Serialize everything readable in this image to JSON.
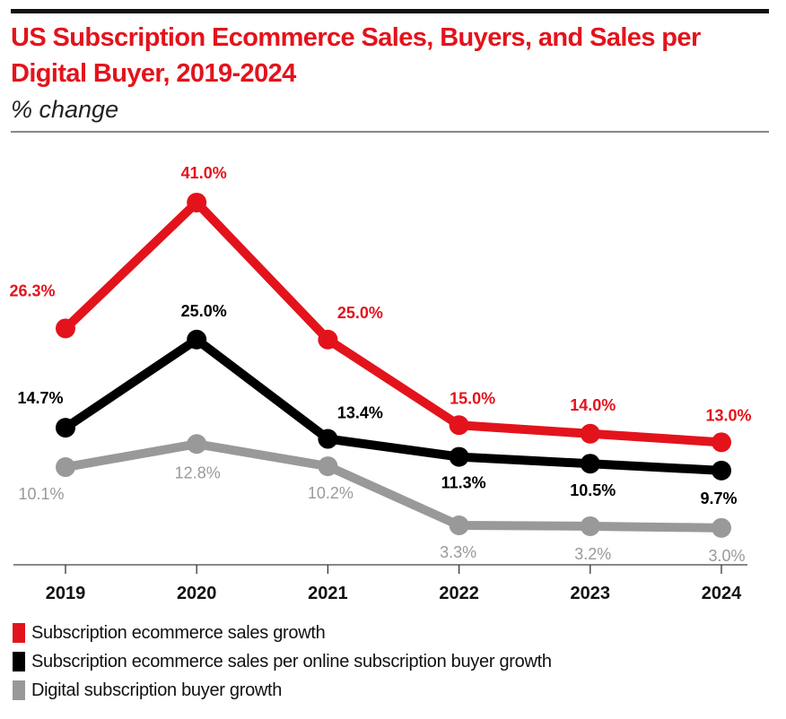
{
  "header": {
    "title": "US Subscription Ecommerce Sales, Buyers, and Sales per Digital Buyer, 2019-2024",
    "subtitle": "% change"
  },
  "chart_data": {
    "type": "line",
    "title": "US Subscription Ecommerce Sales, Buyers, and Sales per Digital Buyer, 2019-2024",
    "subtitle": "% change",
    "xlabel": "",
    "ylabel": "% change",
    "categories": [
      "2019",
      "2020",
      "2021",
      "2022",
      "2023",
      "2024"
    ],
    "ylim": [
      0,
      45
    ],
    "grid": false,
    "legend_position": "bottom-left",
    "series": [
      {
        "name": "Subscription ecommerce sales growth",
        "color": "#e3131c",
        "values": [
          26.3,
          41.0,
          25.0,
          15.0,
          14.0,
          13.0
        ],
        "labels": [
          "26.3%",
          "41.0%",
          "25.0%",
          "15.0%",
          "14.0%",
          "13.0%"
        ]
      },
      {
        "name": "Subscription ecommerce sales per online subscription buyer growth",
        "color": "#000000",
        "values": [
          14.7,
          25.0,
          13.4,
          11.3,
          10.5,
          9.7
        ],
        "labels": [
          "14.7%",
          "25.0%",
          "13.4%",
          "11.3%",
          "10.5%",
          "9.7%"
        ]
      },
      {
        "name": "Digital subscription buyer growth",
        "color": "#999999",
        "values": [
          10.1,
          12.8,
          10.2,
          3.3,
          3.2,
          3.0
        ],
        "labels": [
          "10.1%",
          "12.8%",
          "10.2%",
          "3.3%",
          "3.2%",
          "3.0%"
        ]
      }
    ]
  }
}
